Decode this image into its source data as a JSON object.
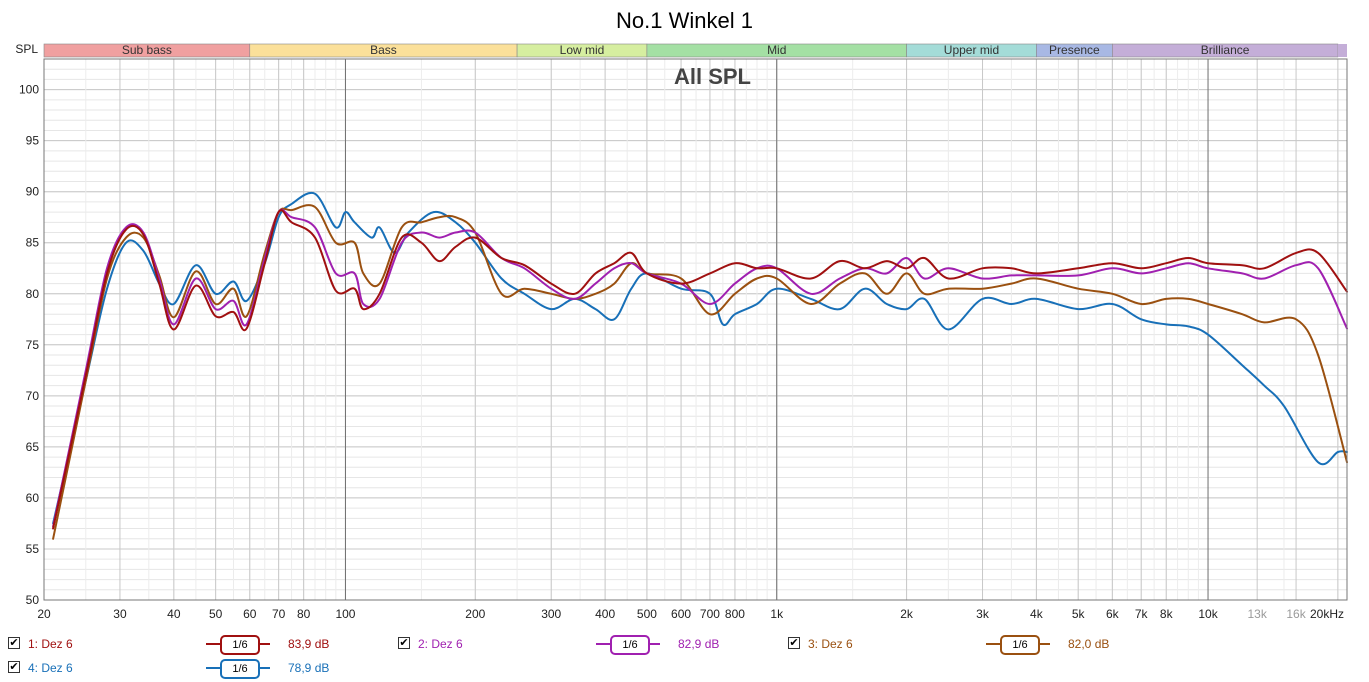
{
  "title": "No.1 Winkel 1",
  "chart_data": {
    "type": "line",
    "title": "No.1 Winkel 1",
    "subtitle": "All SPL",
    "ylabel": "SPL",
    "xlabel": "",
    "x_scale": "log",
    "xlim": [
      20,
      21000
    ],
    "ylim": [
      50,
      103
    ],
    "grid": true,
    "y_ticks": [
      50,
      55,
      60,
      65,
      70,
      75,
      80,
      85,
      90,
      95,
      100
    ],
    "x_ticks": [
      {
        "f": 20,
        "label": "20",
        "dim": false
      },
      {
        "f": 30,
        "label": "30",
        "dim": false
      },
      {
        "f": 40,
        "label": "40",
        "dim": false
      },
      {
        "f": 50,
        "label": "50",
        "dim": false
      },
      {
        "f": 60,
        "label": "60",
        "dim": false
      },
      {
        "f": 70,
        "label": "70",
        "dim": false
      },
      {
        "f": 80,
        "label": "80",
        "dim": false
      },
      {
        "f": 100,
        "label": "100",
        "dim": false
      },
      {
        "f": 200,
        "label": "200",
        "dim": false
      },
      {
        "f": 300,
        "label": "300",
        "dim": false
      },
      {
        "f": 400,
        "label": "400",
        "dim": false
      },
      {
        "f": 500,
        "label": "500",
        "dim": false
      },
      {
        "f": 600,
        "label": "600",
        "dim": false
      },
      {
        "f": 700,
        "label": "700",
        "dim": false
      },
      {
        "f": 800,
        "label": "800",
        "dim": false
      },
      {
        "f": 1000,
        "label": "1k",
        "dim": false
      },
      {
        "f": 2000,
        "label": "2k",
        "dim": false
      },
      {
        "f": 3000,
        "label": "3k",
        "dim": false
      },
      {
        "f": 4000,
        "label": "4k",
        "dim": false
      },
      {
        "f": 5000,
        "label": "5k",
        "dim": false
      },
      {
        "f": 6000,
        "label": "6k",
        "dim": false
      },
      {
        "f": 7000,
        "label": "7k",
        "dim": false
      },
      {
        "f": 8000,
        "label": "8k",
        "dim": false
      },
      {
        "f": 10000,
        "label": "10k",
        "dim": false
      },
      {
        "f": 13000,
        "label": "13k",
        "dim": true
      },
      {
        "f": 16000,
        "label": "16k",
        "dim": true
      },
      {
        "f": 20000,
        "label": "20kHz",
        "dim": false
      }
    ],
    "bands": [
      {
        "name": "Sub bass",
        "from": 20,
        "to": 60,
        "color": "#f0a0a0"
      },
      {
        "name": "Bass",
        "from": 60,
        "to": 250,
        "color": "#fbe09a"
      },
      {
        "name": "Low mid",
        "from": 250,
        "to": 500,
        "color": "#d6eea0"
      },
      {
        "name": "Mid",
        "from": 500,
        "to": 2000,
        "color": "#a4e0a4"
      },
      {
        "name": "Upper mid",
        "from": 2000,
        "to": 4000,
        "color": "#a4dcd8"
      },
      {
        "name": "Presence",
        "from": 4000,
        "to": 6000,
        "color": "#a8b8e4"
      },
      {
        "name": "Brilliance",
        "from": 6000,
        "to": 20000,
        "color": "#c4aed8"
      }
    ],
    "series": [
      {
        "name": "1: Dez 6",
        "color": "#a01010",
        "smoothing": "1/6",
        "avg": "83,9 dB",
        "checked": true,
        "points": [
          [
            21,
            57
          ],
          [
            25,
            72
          ],
          [
            28,
            82
          ],
          [
            31,
            86.3
          ],
          [
            34,
            85.8
          ],
          [
            37,
            81
          ],
          [
            40,
            76.5
          ],
          [
            45,
            80.8
          ],
          [
            50,
            77.8
          ],
          [
            55,
            78.2
          ],
          [
            59,
            76.6
          ],
          [
            65,
            83
          ],
          [
            70,
            88
          ],
          [
            75,
            87
          ],
          [
            85,
            85.5
          ],
          [
            95,
            80.3
          ],
          [
            105,
            80.5
          ],
          [
            110,
            78.5
          ],
          [
            120,
            80
          ],
          [
            135,
            85.5
          ],
          [
            150,
            85
          ],
          [
            165,
            83.2
          ],
          [
            180,
            84.6
          ],
          [
            200,
            85.5
          ],
          [
            230,
            83.5
          ],
          [
            260,
            82.8
          ],
          [
            300,
            81
          ],
          [
            340,
            80
          ],
          [
            380,
            82
          ],
          [
            420,
            83
          ],
          [
            460,
            84
          ],
          [
            500,
            82
          ],
          [
            600,
            81
          ],
          [
            700,
            82
          ],
          [
            800,
            83
          ],
          [
            900,
            82.5
          ],
          [
            1000,
            82.5
          ],
          [
            1200,
            81.5
          ],
          [
            1400,
            83.2
          ],
          [
            1600,
            82.5
          ],
          [
            1800,
            83.2
          ],
          [
            2000,
            82.5
          ],
          [
            2200,
            83.5
          ],
          [
            2500,
            81.5
          ],
          [
            3000,
            82.5
          ],
          [
            3500,
            82.5
          ],
          [
            4000,
            82
          ],
          [
            5000,
            82.5
          ],
          [
            6000,
            83
          ],
          [
            7000,
            82.5
          ],
          [
            8000,
            83
          ],
          [
            9000,
            83.5
          ],
          [
            10000,
            83
          ],
          [
            12000,
            82.8
          ],
          [
            13500,
            82.5
          ],
          [
            16000,
            84
          ],
          [
            18000,
            84
          ],
          [
            21000,
            80.2
          ]
        ]
      },
      {
        "name": "2: Dez 6",
        "color": "#a020b0",
        "smoothing": "1/6",
        "avg": "82,9 dB",
        "checked": true,
        "points": [
          [
            21,
            57.2
          ],
          [
            25,
            72.5
          ],
          [
            28,
            82.5
          ],
          [
            31,
            86.5
          ],
          [
            34,
            86
          ],
          [
            37,
            81.5
          ],
          [
            40,
            77
          ],
          [
            45,
            81.5
          ],
          [
            50,
            78.5
          ],
          [
            55,
            79.3
          ],
          [
            59,
            77
          ],
          [
            65,
            83.5
          ],
          [
            70,
            88
          ],
          [
            75,
            87.5
          ],
          [
            85,
            86.5
          ],
          [
            95,
            82
          ],
          [
            105,
            82
          ],
          [
            110,
            79
          ],
          [
            120,
            79.5
          ],
          [
            135,
            85
          ],
          [
            150,
            86
          ],
          [
            165,
            85.5
          ],
          [
            180,
            86
          ],
          [
            200,
            86
          ],
          [
            230,
            83.5
          ],
          [
            260,
            82.5
          ],
          [
            300,
            80.5
          ],
          [
            340,
            79.5
          ],
          [
            380,
            81
          ],
          [
            420,
            82.5
          ],
          [
            460,
            83
          ],
          [
            500,
            82
          ],
          [
            600,
            81
          ],
          [
            700,
            79
          ],
          [
            800,
            81
          ],
          [
            900,
            82.5
          ],
          [
            1000,
            82.5
          ],
          [
            1200,
            80
          ],
          [
            1400,
            81.5
          ],
          [
            1600,
            82.5
          ],
          [
            1800,
            82
          ],
          [
            2000,
            83.5
          ],
          [
            2200,
            81.5
          ],
          [
            2500,
            82.5
          ],
          [
            3000,
            81.5
          ],
          [
            3500,
            81.8
          ],
          [
            4000,
            81.8
          ],
          [
            5000,
            81.8
          ],
          [
            6000,
            82.5
          ],
          [
            7000,
            82
          ],
          [
            8000,
            82.5
          ],
          [
            9000,
            83
          ],
          [
            10000,
            82.5
          ],
          [
            12000,
            82
          ],
          [
            13500,
            81.5
          ],
          [
            16000,
            82.8
          ],
          [
            18000,
            82.5
          ],
          [
            21000,
            76.6
          ]
        ]
      },
      {
        "name": "3: Dez 6",
        "color": "#9a5010",
        "smoothing": "1/6",
        "avg": "82,0 dB",
        "checked": true,
        "points": [
          [
            21,
            56
          ],
          [
            25,
            71.5
          ],
          [
            28,
            81.5
          ],
          [
            31,
            85.5
          ],
          [
            34,
            85.5
          ],
          [
            37,
            81.8
          ],
          [
            40,
            77.7
          ],
          [
            45,
            82.2
          ],
          [
            50,
            79
          ],
          [
            55,
            80.5
          ],
          [
            59,
            77.8
          ],
          [
            65,
            84
          ],
          [
            70,
            88
          ],
          [
            75,
            88.2
          ],
          [
            85,
            88.5
          ],
          [
            95,
            85
          ],
          [
            105,
            85
          ],
          [
            110,
            82
          ],
          [
            120,
            81
          ],
          [
            135,
            86.5
          ],
          [
            150,
            87
          ],
          [
            165,
            87.5
          ],
          [
            180,
            87.5
          ],
          [
            200,
            86
          ],
          [
            230,
            80
          ],
          [
            260,
            80.5
          ],
          [
            300,
            80
          ],
          [
            340,
            79.5
          ],
          [
            380,
            80
          ],
          [
            420,
            81
          ],
          [
            460,
            83
          ],
          [
            500,
            82
          ],
          [
            600,
            81.5
          ],
          [
            700,
            78
          ],
          [
            800,
            80
          ],
          [
            900,
            81.5
          ],
          [
            1000,
            81.5
          ],
          [
            1200,
            79
          ],
          [
            1400,
            81
          ],
          [
            1600,
            82
          ],
          [
            1800,
            80
          ],
          [
            2000,
            82
          ],
          [
            2200,
            80
          ],
          [
            2500,
            80.5
          ],
          [
            3000,
            80.5
          ],
          [
            3500,
            81
          ],
          [
            4000,
            81.5
          ],
          [
            5000,
            80.5
          ],
          [
            6000,
            80
          ],
          [
            7000,
            79
          ],
          [
            8000,
            79.5
          ],
          [
            9000,
            79.5
          ],
          [
            10000,
            79
          ],
          [
            12000,
            78
          ],
          [
            13500,
            77.2
          ],
          [
            16000,
            77.5
          ],
          [
            18000,
            74
          ],
          [
            21000,
            63.5
          ]
        ]
      },
      {
        "name": "4: Dez 6",
        "color": "#1870b8",
        "smoothing": "1/6",
        "avg": "78,9 dB",
        "checked": true,
        "points": [
          [
            21,
            57.5
          ],
          [
            25,
            71.5
          ],
          [
            28,
            80.5
          ],
          [
            31,
            85
          ],
          [
            34,
            84.2
          ],
          [
            37,
            81
          ],
          [
            40,
            79
          ],
          [
            45,
            82.8
          ],
          [
            50,
            80
          ],
          [
            55,
            81.2
          ],
          [
            59,
            79.3
          ],
          [
            65,
            83
          ],
          [
            70,
            87.5
          ],
          [
            75,
            88.8
          ],
          [
            85,
            89.8
          ],
          [
            95,
            86.5
          ],
          [
            100,
            88
          ],
          [
            105,
            87
          ],
          [
            115,
            85.5
          ],
          [
            120,
            86.5
          ],
          [
            130,
            84
          ],
          [
            140,
            86
          ],
          [
            160,
            88
          ],
          [
            180,
            87
          ],
          [
            200,
            85
          ],
          [
            230,
            81.5
          ],
          [
            260,
            80
          ],
          [
            300,
            78.5
          ],
          [
            340,
            79.5
          ],
          [
            380,
            78.5
          ],
          [
            420,
            77.5
          ],
          [
            460,
            80.5
          ],
          [
            500,
            82
          ],
          [
            600,
            80.5
          ],
          [
            700,
            80
          ],
          [
            750,
            77
          ],
          [
            800,
            78
          ],
          [
            900,
            79
          ],
          [
            1000,
            80.5
          ],
          [
            1200,
            79.5
          ],
          [
            1400,
            78.5
          ],
          [
            1600,
            80.5
          ],
          [
            1800,
            79
          ],
          [
            2000,
            78.5
          ],
          [
            2200,
            79.5
          ],
          [
            2500,
            76.5
          ],
          [
            3000,
            79.5
          ],
          [
            3500,
            79
          ],
          [
            4000,
            79.5
          ],
          [
            5000,
            78.5
          ],
          [
            6000,
            79
          ],
          [
            7000,
            77.5
          ],
          [
            8000,
            77
          ],
          [
            9000,
            76.8
          ],
          [
            10000,
            76
          ],
          [
            12000,
            73
          ],
          [
            13500,
            71
          ],
          [
            15000,
            69
          ],
          [
            18000,
            63.5
          ],
          [
            20000,
            64.5
          ],
          [
            21000,
            64.5
          ]
        ]
      }
    ]
  },
  "legend": [
    {
      "name": "1: Dez 6",
      "smoothing": "1/6",
      "value": "83,9 dB"
    },
    {
      "name": "2: Dez 6",
      "smoothing": "1/6",
      "value": "82,9 dB"
    },
    {
      "name": "3: Dez 6",
      "smoothing": "1/6",
      "value": "82,0 dB"
    },
    {
      "name": "4: Dez 6",
      "smoothing": "1/6",
      "value": "78,9 dB"
    }
  ],
  "colors": {
    "series1": "#a01010",
    "series2": "#a020b0",
    "series3": "#9a5010",
    "series4": "#1870b8"
  }
}
